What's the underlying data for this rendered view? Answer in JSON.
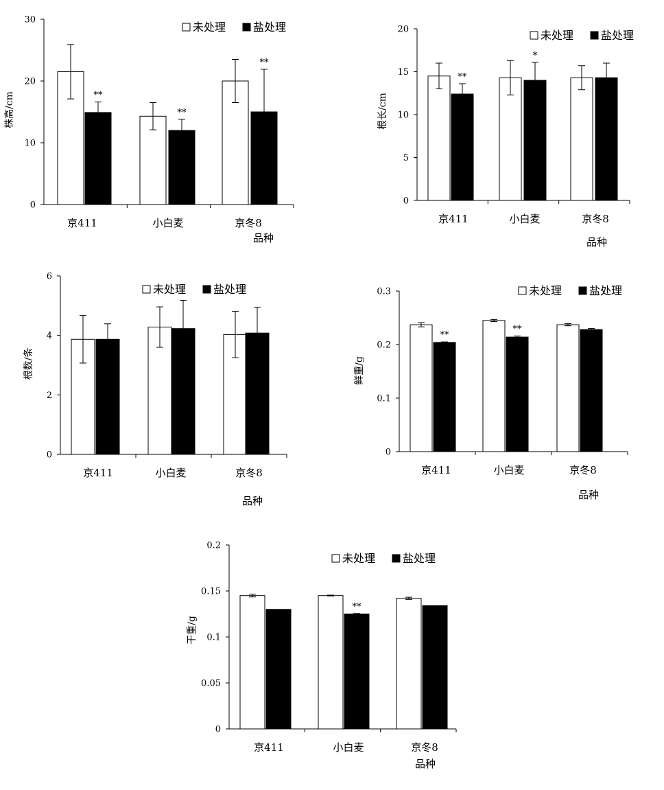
{
  "legend": {
    "control": "未处理",
    "salt": "盐处理"
  },
  "charts": [
    {
      "id": "plant-height",
      "chart_data": {
        "type": "bar",
        "ylabel": "株高/cm",
        "xlabel": "品种",
        "ylim": [
          0,
          30
        ],
        "yticks": [
          0,
          10,
          20,
          30
        ],
        "categories": [
          "京411",
          "小白麦",
          "京冬8"
        ],
        "series": [
          {
            "name": "未处理",
            "values": [
              21.5,
              14.3,
              20.0
            ],
            "errors": [
              4.4,
              2.2,
              3.5
            ],
            "sig": [
              "",
              "",
              ""
            ]
          },
          {
            "name": "盐处理",
            "values": [
              14.9,
              12.0,
              15.0
            ],
            "errors": [
              1.7,
              1.8,
              6.9
            ],
            "sig": [
              "**",
              "**",
              "**"
            ]
          }
        ]
      }
    },
    {
      "id": "root-length",
      "chart_data": {
        "type": "bar",
        "ylabel": "根长/cm",
        "xlabel": "品种",
        "ylim": [
          0,
          20
        ],
        "yticks": [
          0,
          5,
          10,
          15,
          20
        ],
        "categories": [
          "京411",
          "小白麦",
          "京冬8"
        ],
        "series": [
          {
            "name": "未处理",
            "values": [
              14.5,
              14.3,
              14.3
            ],
            "errors": [
              1.5,
              2.0,
              1.4
            ],
            "sig": [
              "",
              "",
              ""
            ]
          },
          {
            "name": "盐处理",
            "values": [
              12.4,
              14.0,
              14.3
            ],
            "errors": [
              1.2,
              2.1,
              1.7
            ],
            "sig": [
              "**",
              "*",
              ""
            ]
          }
        ]
      }
    },
    {
      "id": "root-number",
      "chart_data": {
        "type": "bar",
        "ylabel": "根数/条",
        "xlabel": "品种",
        "ylim": [
          0,
          6
        ],
        "yticks": [
          0,
          2,
          4,
          6
        ],
        "categories": [
          "京411",
          "小白麦",
          "京冬8"
        ],
        "series": [
          {
            "name": "未处理",
            "values": [
              3.87,
              4.28,
              4.03
            ],
            "errors": [
              0.8,
              0.68,
              0.78
            ],
            "sig": [
              "",
              "",
              ""
            ]
          },
          {
            "name": "盐处理",
            "values": [
              3.87,
              4.23,
              4.08
            ],
            "errors": [
              0.52,
              0.95,
              0.87
            ],
            "sig": [
              "",
              "",
              ""
            ]
          }
        ]
      }
    },
    {
      "id": "fresh-weight",
      "chart_data": {
        "type": "bar",
        "ylabel": "鲜重/g",
        "xlabel": "品种",
        "ylim": [
          0,
          0.3
        ],
        "yticks": [
          0,
          0.1,
          0.2,
          0.3
        ],
        "categories": [
          "京411",
          "小白麦",
          "京冬8"
        ],
        "series": [
          {
            "name": "未处理",
            "values": [
              0.237,
              0.245,
              0.237
            ],
            "errors": [
              0.004,
              0.002,
              0.002
            ],
            "sig": [
              "",
              "",
              ""
            ]
          },
          {
            "name": "盐处理",
            "values": [
              0.204,
              0.214,
              0.228
            ],
            "errors": [
              0.001,
              0.002,
              0.002
            ],
            "sig": [
              "**",
              "**",
              ""
            ]
          }
        ]
      }
    },
    {
      "id": "dry-weight",
      "chart_data": {
        "type": "bar",
        "ylabel": "干重/g",
        "xlabel": "品种",
        "ylim": [
          0,
          0.2
        ],
        "yticks": [
          0,
          0.05,
          0.1,
          0.15,
          0.2
        ],
        "categories": [
          "京411",
          "小白麦",
          "京冬8"
        ],
        "series": [
          {
            "name": "未处理",
            "values": [
              0.145,
              0.145,
              0.142
            ],
            "errors": [
              0.0015,
              0.0005,
              0.0012
            ],
            "sig": [
              "",
              "",
              ""
            ]
          },
          {
            "name": "盐处理",
            "values": [
              0.13,
              0.125,
              0.134
            ],
            "errors": [
              0.0,
              0.0005,
              0.0
            ],
            "sig": [
              "",
              "**",
              ""
            ]
          }
        ]
      }
    }
  ]
}
